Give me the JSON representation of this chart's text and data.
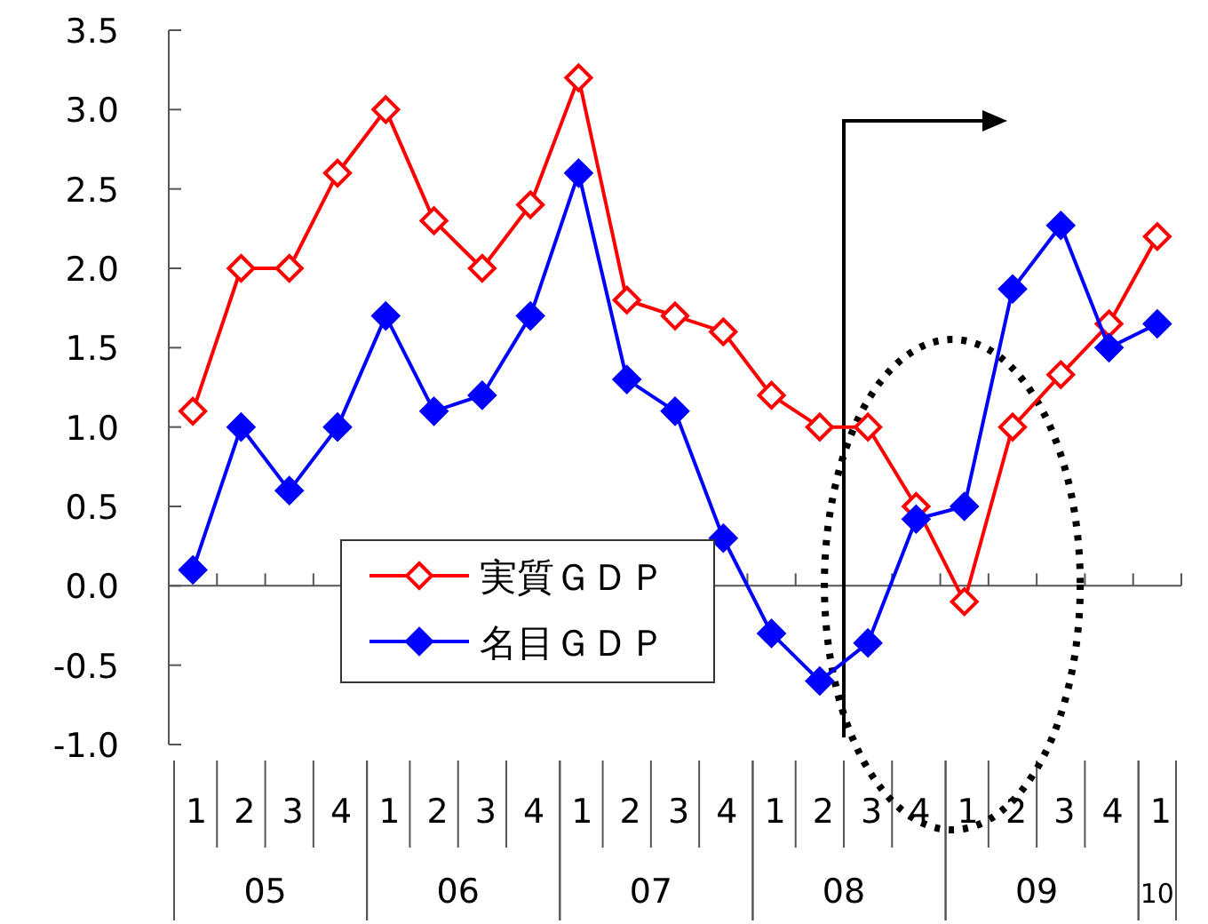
{
  "chart_data": {
    "type": "line",
    "categories": [
      "1",
      "2",
      "3",
      "4",
      "1",
      "2",
      "3",
      "4",
      "1",
      "2",
      "3",
      "4",
      "1",
      "2",
      "3",
      "4",
      "1",
      "2",
      "3",
      "4",
      "1"
    ],
    "series": [
      {
        "name": "実質ＧＤＰ",
        "color": "#ff0000",
        "marker": "diamond",
        "values": [
          1.1,
          2.0,
          2.0,
          2.6,
          3.0,
          2.3,
          2.0,
          2.4,
          3.2,
          1.8,
          1.7,
          1.6,
          1.2,
          1.0,
          1.0,
          0.5,
          -0.1,
          1.0,
          1.33,
          1.65,
          2.2
        ]
      },
      {
        "name": "名目ＧＤＰ",
        "color": "#0000ff",
        "marker": "diamond",
        "values": [
          0.1,
          1.0,
          0.6,
          1.0,
          1.7,
          1.1,
          1.2,
          1.7,
          2.6,
          1.3,
          1.1,
          0.3,
          -0.3,
          -0.6,
          -0.36,
          0.42,
          0.5,
          1.87,
          2.27,
          1.5,
          1.65
        ]
      }
    ],
    "ylim": [
      -1.0,
      3.5
    ],
    "yticks": [
      {
        "value": -1,
        "label": "-1.0"
      },
      {
        "value": -0.5,
        "label": "-0.5"
      },
      {
        "value": 0,
        "label": "0.0"
      },
      {
        "value": 0.5,
        "label": "0.5"
      },
      {
        "value": 1,
        "label": "1.0"
      },
      {
        "value": 1.5,
        "label": "1.5"
      },
      {
        "value": 2,
        "label": "2.0"
      },
      {
        "value": 2.5,
        "label": "2.5"
      },
      {
        "value": 3,
        "label": "3.0"
      },
      {
        "value": 3.5,
        "label": "3.5"
      }
    ],
    "annotations": [
      "05",
      "06",
      "07",
      "08",
      "09",
      "10"
    ],
    "ref_lines": [
      {
        "axis": "y",
        "value": 0,
        "color": "#555555"
      }
    ],
    "legend": "bottom left",
    "grid": false
  }
}
